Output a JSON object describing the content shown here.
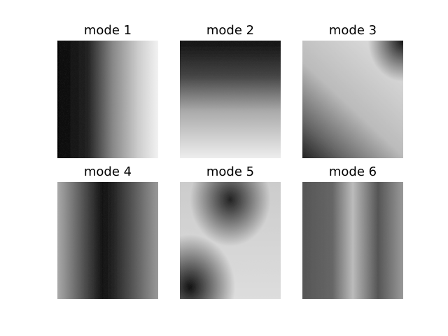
{
  "panels": [
    {
      "title": "mode 1"
    },
    {
      "title": "mode 2"
    },
    {
      "title": "mode 3"
    },
    {
      "title": "mode 4"
    },
    {
      "title": "mode 5"
    },
    {
      "title": "mode 6"
    }
  ]
}
